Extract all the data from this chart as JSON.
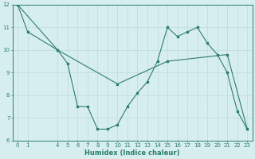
{
  "xlabel": "Humidex (Indice chaleur)",
  "line1_x": [
    0,
    1,
    4,
    5,
    6,
    7,
    8,
    9,
    10,
    11,
    12,
    13,
    14,
    15,
    16,
    17,
    18,
    19,
    20,
    21,
    22,
    23
  ],
  "line1_y": [
    12,
    10.8,
    10.0,
    9.4,
    7.5,
    7.5,
    6.5,
    6.5,
    6.7,
    7.5,
    8.1,
    8.6,
    9.5,
    11.0,
    10.6,
    10.8,
    11.0,
    10.3,
    9.8,
    9.0,
    7.3,
    6.5
  ],
  "line2_x": [
    0,
    4,
    10,
    15,
    21,
    23
  ],
  "line2_y": [
    12,
    10.0,
    8.5,
    9.5,
    9.8,
    6.5
  ],
  "line_color": "#2d7d6e",
  "bg_color": "#d7eeee",
  "grid_color": "#c0dede",
  "ylim": [
    6,
    12
  ],
  "xlim": [
    -0.5,
    23.5
  ],
  "yticks": [
    6,
    7,
    8,
    9,
    10,
    11,
    12
  ],
  "xticks": [
    0,
    1,
    4,
    5,
    6,
    7,
    8,
    9,
    10,
    11,
    12,
    13,
    14,
    15,
    16,
    17,
    18,
    19,
    20,
    21,
    22,
    23
  ],
  "tick_fontsize": 5.0,
  "xlabel_fontsize": 6.0
}
